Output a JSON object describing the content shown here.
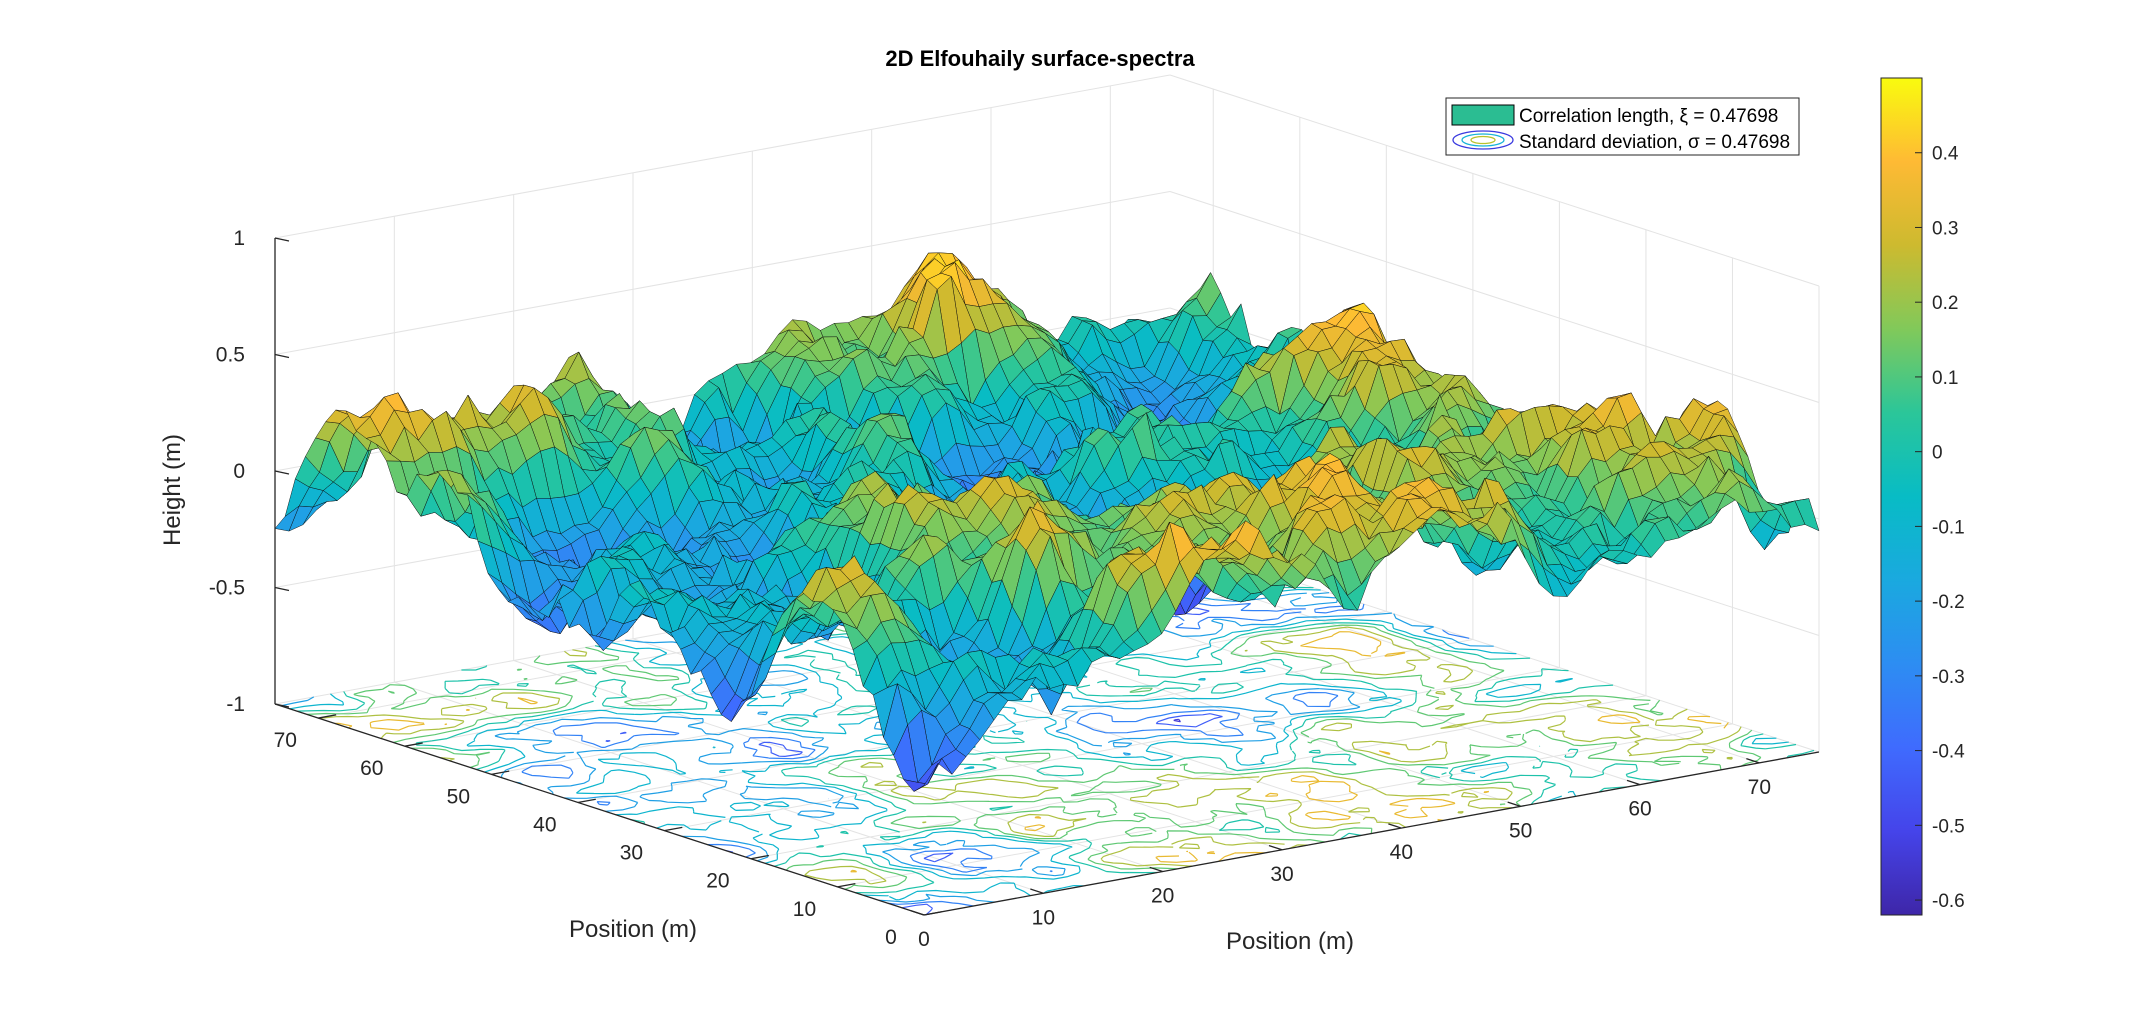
{
  "chart_data": {
    "type": "surface",
    "title": "2D Elfouhaily surface-spectra",
    "xlabel": "Position (m)",
    "ylabel": "Position (m)",
    "zlabel": "Height (m)",
    "x_range": [
      0,
      75
    ],
    "y_range": [
      0,
      75
    ],
    "z_range": [
      -1,
      1
    ],
    "x_ticks": [
      "0",
      "10",
      "20",
      "30",
      "40",
      "50",
      "60",
      "70"
    ],
    "y_ticks": [
      "0",
      "10",
      "20",
      "30",
      "40",
      "50",
      "60",
      "70"
    ],
    "z_ticks": [
      "-1",
      "-0.5",
      "0",
      "0.5",
      "1"
    ],
    "grid": true,
    "colormap": "parula",
    "colorbar": {
      "range": [
        -0.62,
        0.5
      ],
      "ticks": [
        "0.4",
        "0.3",
        "0.2",
        "0.1",
        "0",
        "-0.1",
        "-0.2",
        "-0.3",
        "-0.4",
        "-0.5",
        "-0.6"
      ],
      "tick_values": [
        0.4,
        0.3,
        0.2,
        0.1,
        0,
        -0.1,
        -0.2,
        -0.3,
        -0.4,
        -0.5,
        -0.6
      ]
    },
    "legend": {
      "placement": "top-right",
      "entries": [
        {
          "label": "Correlation length, ξ = 0.47698",
          "marker": "surface-patch",
          "color": "#2bbd92"
        },
        {
          "label": "Standard deviation, σ = 0.47698",
          "marker": "contour",
          "color": "#6b5ce6"
        }
      ]
    },
    "surface_stats": {
      "correlation_length": 0.47698,
      "standard_deviation": 0.47698,
      "height_min": -0.62,
      "height_max": 0.5
    }
  }
}
